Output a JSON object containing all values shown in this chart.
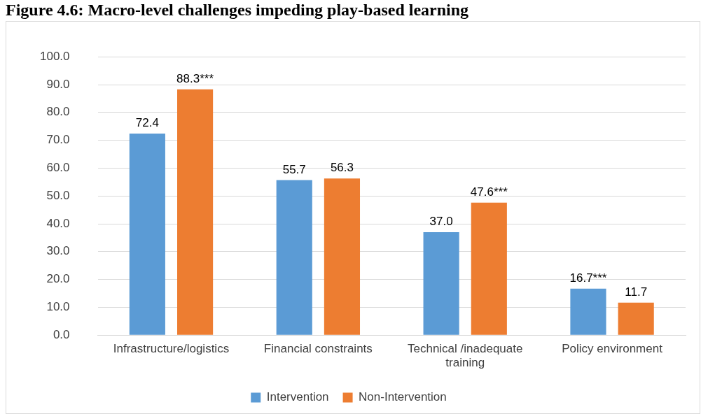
{
  "chart_data": {
    "type": "bar",
    "title": "Figure 4.6: Macro-level challenges impeding play-based learning",
    "categories": [
      "Infrastructure/logistics",
      "Financial constraints",
      "Technical /inadequate training",
      "Policy environment"
    ],
    "series": [
      {
        "name": "Intervention",
        "color": "#5b9bd5",
        "values": [
          72.4,
          55.7,
          37.0,
          16.7
        ],
        "value_labels": [
          "72.4",
          "55.7",
          "37.0",
          "16.7***"
        ]
      },
      {
        "name": "Non-Intervention",
        "color": "#ed7d31",
        "values": [
          88.3,
          56.3,
          47.6,
          11.7
        ],
        "value_labels": [
          "88.3***",
          "56.3",
          "47.6***",
          "11.7"
        ]
      }
    ],
    "ylim": [
      0,
      100
    ],
    "yticks": [
      {
        "value": 0,
        "label": "0.0"
      },
      {
        "value": 10,
        "label": "10.0"
      },
      {
        "value": 20,
        "label": "20.0"
      },
      {
        "value": 30,
        "label": "30.0"
      },
      {
        "value": 40,
        "label": "40.0"
      },
      {
        "value": 50,
        "label": "50.0"
      },
      {
        "value": 60,
        "label": "60.0"
      },
      {
        "value": 70,
        "label": "70.0"
      },
      {
        "value": 80,
        "label": "80.0"
      },
      {
        "value": 90,
        "label": "90.0"
      },
      {
        "value": 100,
        "label": "100.0"
      }
    ],
    "grid": "y",
    "legend": "bottom"
  }
}
